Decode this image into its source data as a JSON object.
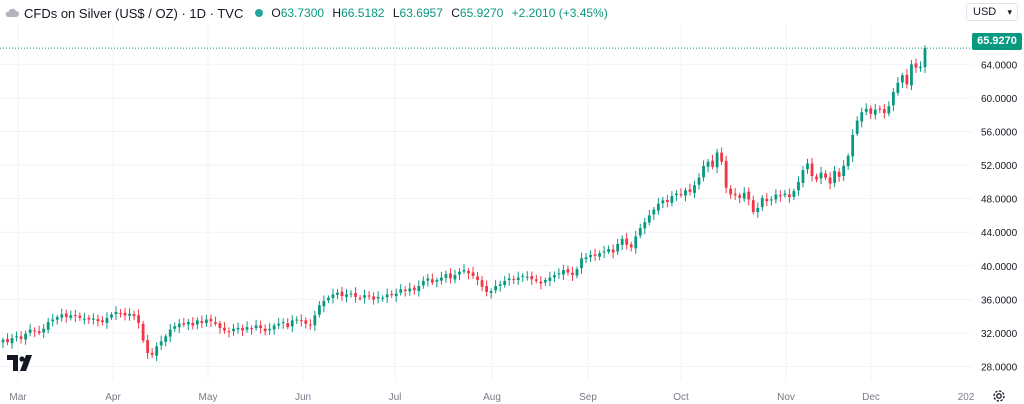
{
  "legend": {
    "title": "CFDs on Silver (US$ / OZ) · 1D · TVC",
    "open_key": "O",
    "open": "63.7300",
    "high_key": "H",
    "high": "66.5182",
    "low_key": "L",
    "low": "63.6957",
    "close_key": "C",
    "close": "65.9270",
    "change": "+2.2010 (+3.45%)"
  },
  "currency_label": "USD",
  "last_price_label": "65.9270",
  "colors": {
    "up": "#089981",
    "down": "#f23645",
    "grid": "#f0f3fa",
    "axis_text": "#131722"
  },
  "chart_data": {
    "type": "candlestick",
    "title": "",
    "y_axis_labels": [
      "28.0000",
      "32.0000",
      "36.0000",
      "40.0000",
      "44.0000",
      "48.0000",
      "52.0000",
      "56.0000",
      "60.0000",
      "64.0000"
    ],
    "y_ticks": [
      28,
      32,
      36,
      40,
      44,
      48,
      52,
      56,
      60,
      64
    ],
    "ylim": [
      26.4,
      68.8
    ],
    "x_axis_labels": [
      "Mar",
      "Apr",
      "May",
      "Jun",
      "Jul",
      "Aug",
      "Sep",
      "Oct",
      "Nov",
      "Dec",
      "202"
    ],
    "last_price": 65.927,
    "grid": true,
    "closes": [
      31.2,
      30.9,
      31.4,
      31.6,
      31.3,
      31.9,
      32.4,
      32.2,
      32.0,
      32.5,
      33.3,
      33.6,
      33.9,
      34.2,
      33.9,
      34.1,
      34.0,
      33.8,
      33.7,
      33.6,
      33.7,
      33.4,
      33.3,
      33.8,
      34.2,
      34.5,
      34.3,
      34.1,
      34.3,
      34.0,
      33.2,
      31.1,
      29.6,
      29.4,
      30.4,
      31.0,
      31.6,
      32.4,
      32.8,
      33.1,
      33.0,
      33.3,
      32.9,
      33.5,
      33.2,
      33.6,
      33.4,
      33.1,
      32.6,
      32.3,
      32.1,
      32.5,
      32.6,
      32.3,
      32.7,
      32.5,
      32.9,
      32.6,
      32.2,
      32.5,
      32.9,
      33.1,
      33.3,
      32.7,
      33.5,
      33.6,
      33.4,
      33.1,
      32.9,
      34.1,
      35.3,
      35.8,
      36.2,
      36.6,
      36.8,
      36.4,
      36.6,
      36.7,
      36.3,
      36.1,
      36.5,
      36.4,
      36.0,
      36.3,
      36.2,
      36.6,
      36.5,
      36.7,
      37.2,
      37.0,
      37.3,
      37.1,
      37.6,
      38.2,
      38.5,
      38.0,
      38.3,
      38.6,
      39.0,
      38.5,
      38.9,
      39.3,
      39.5,
      39.1,
      38.8,
      38.3,
      37.5,
      36.9,
      37.0,
      37.6,
      37.8,
      38.2,
      38.5,
      38.3,
      38.6,
      38.8,
      38.7,
      38.4,
      38.2,
      37.9,
      38.3,
      38.6,
      38.9,
      39.1,
      39.5,
      39.2,
      38.9,
      39.6,
      40.9,
      41.0,
      41.3,
      41.2,
      41.5,
      41.7,
      42.0,
      41.6,
      42.6,
      43.2,
      42.5,
      42.2,
      43.5,
      44.5,
      45.2,
      46.0,
      46.7,
      47.4,
      47.8,
      47.6,
      48.3,
      48.6,
      48.4,
      49.0,
      48.8,
      49.6,
      50.5,
      51.9,
      52.4,
      51.8,
      53.5,
      52.4,
      49.3,
      48.5,
      48.4,
      48.1,
      48.7,
      47.9,
      46.4,
      46.9,
      48.1,
      47.7,
      47.9,
      48.5,
      48.3,
      48.6,
      48.2,
      48.9,
      50.0,
      51.4,
      52.2,
      50.7,
      50.3,
      51.1,
      50.5,
      49.8,
      51.3,
      50.6,
      51.9,
      53.1,
      55.6,
      57.3,
      58.3,
      58.7,
      58.1,
      58.6,
      58.7,
      58.2,
      59.0,
      60.7,
      61.8,
      62.7,
      61.6,
      64.0,
      63.6,
      63.7,
      65.927
    ]
  }
}
